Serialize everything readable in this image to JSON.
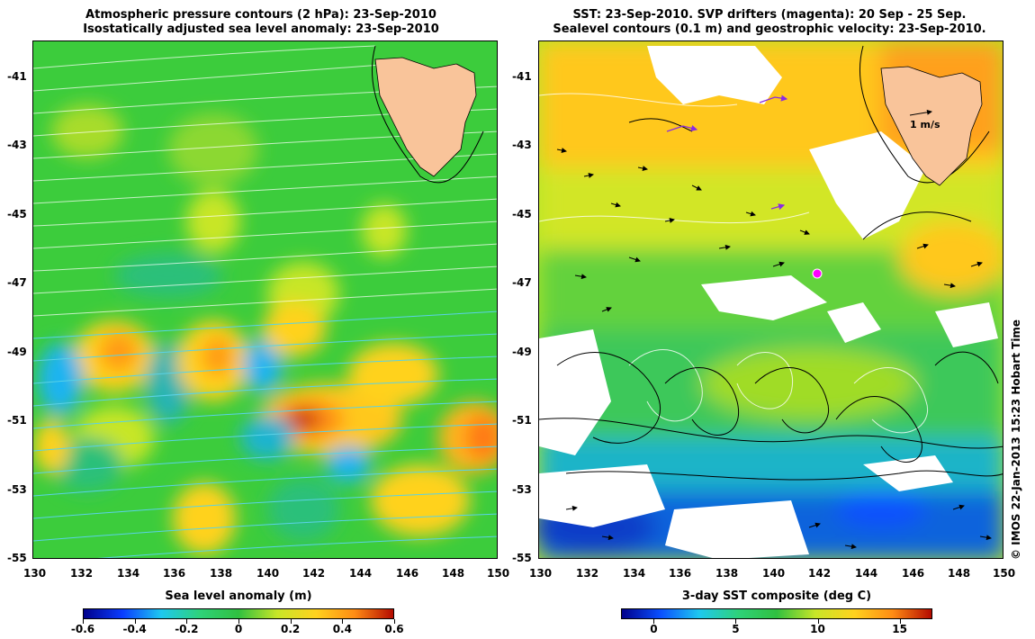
{
  "left_panel": {
    "title_line1": "Atmospheric pressure contours (2 hPa): 23-Sep-2010",
    "title_line2": "Isostatically adjusted sea level anomaly: 23-Sep-2010",
    "colorbar_title": "Sea level anomaly (m)",
    "colorbar_ticks": [
      "-0.6",
      "-0.4",
      "-0.2",
      "0",
      "0.2",
      "0.4",
      "0.6"
    ],
    "colorbar_stops": [
      "#00008b",
      "#0a3cff",
      "#1ec8f0",
      "#2ed27a",
      "#30c040",
      "#c8e628",
      "#ffd21e",
      "#ff8c14",
      "#b40a00"
    ],
    "colorbar_range": [
      -0.6,
      0.6
    ]
  },
  "right_panel": {
    "title_line1": "SST: 23-Sep-2010. SVP drifters (magenta): 20 Sep - 25 Sep.",
    "title_line2": "Sealevel contours (0.1 m) and geostrophic velocity: 23-Sep-2010.",
    "colorbar_title": "3-day SST composite (deg C)",
    "colorbar_ticks": [
      "0",
      "5",
      "10",
      "15"
    ],
    "colorbar_tick_values": [
      0,
      5,
      10,
      15
    ],
    "colorbar_range": [
      -2,
      17
    ],
    "colorbar_stops": [
      "#00008b",
      "#0a50ff",
      "#1ec8f0",
      "#2ed27a",
      "#30c040",
      "#c8e628",
      "#ffd21e",
      "#ff8c14",
      "#b40a00"
    ],
    "velocity_scale_label": "1 m/s"
  },
  "axes": {
    "lon_ticks": [
      "130",
      "132",
      "134",
      "136",
      "138",
      "140",
      "142",
      "144",
      "146",
      "148",
      "150"
    ],
    "lat_ticks": [
      "-41",
      "-43",
      "-45",
      "-47",
      "-49",
      "-51",
      "-53",
      "-55"
    ],
    "lon_range": [
      130,
      150
    ],
    "lat_range": [
      -55,
      -40
    ]
  },
  "credit": "© IMOS 22-Jan-2013 15:23 Hobart Time",
  "colors": {
    "land": "#f9c49a",
    "ocean_base_left": "#3cc83c",
    "ocean_base_right": "#b4e628",
    "cloud_gap": "#ffffff",
    "drifter": "#ff00ff"
  }
}
